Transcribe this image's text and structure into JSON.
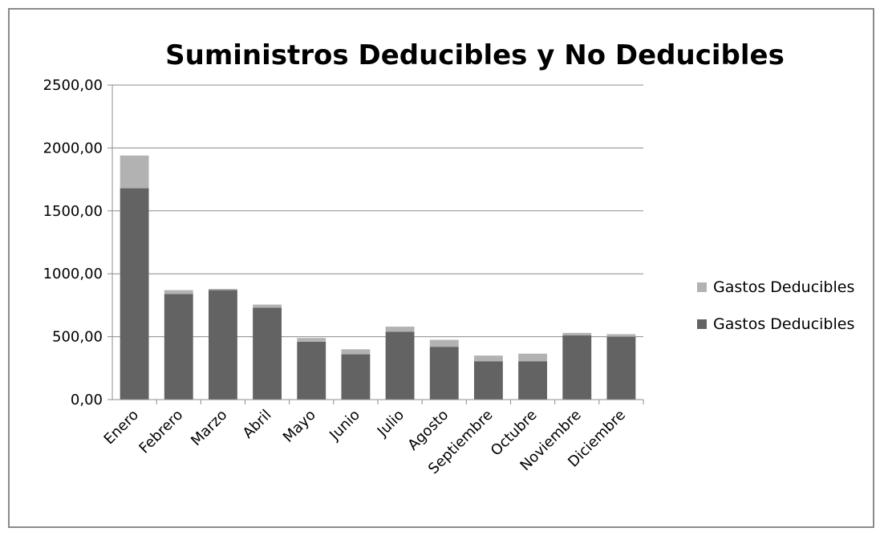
{
  "chart_data": {
    "type": "bar",
    "stacked": true,
    "title": "Suministros Deducibles y No Deducibles",
    "xlabel": "",
    "ylabel": "",
    "ylim": [
      0,
      2500
    ],
    "yticks": [
      "0,00",
      "500,00",
      "1000,00",
      "1500,00",
      "2000,00",
      "2500,00"
    ],
    "categories": [
      "Enero",
      "Febrero",
      "Marzo",
      "Abril",
      "Mayo",
      "Junio",
      "Julio",
      "Agosto",
      "Septiembre",
      "Octubre",
      "Noviembre",
      "Diciembre"
    ],
    "series": [
      {
        "name": "Gastos Deducibles",
        "color": "#636363",
        "values": [
          1680,
          840,
          870,
          730,
          460,
          360,
          540,
          420,
          305,
          305,
          510,
          500
        ]
      },
      {
        "name": "Gastos Deducibles",
        "color": "#b2b2b2",
        "values": [
          260,
          30,
          10,
          25,
          30,
          40,
          40,
          55,
          45,
          60,
          20,
          20
        ]
      }
    ],
    "grid": true,
    "legend": "right"
  }
}
